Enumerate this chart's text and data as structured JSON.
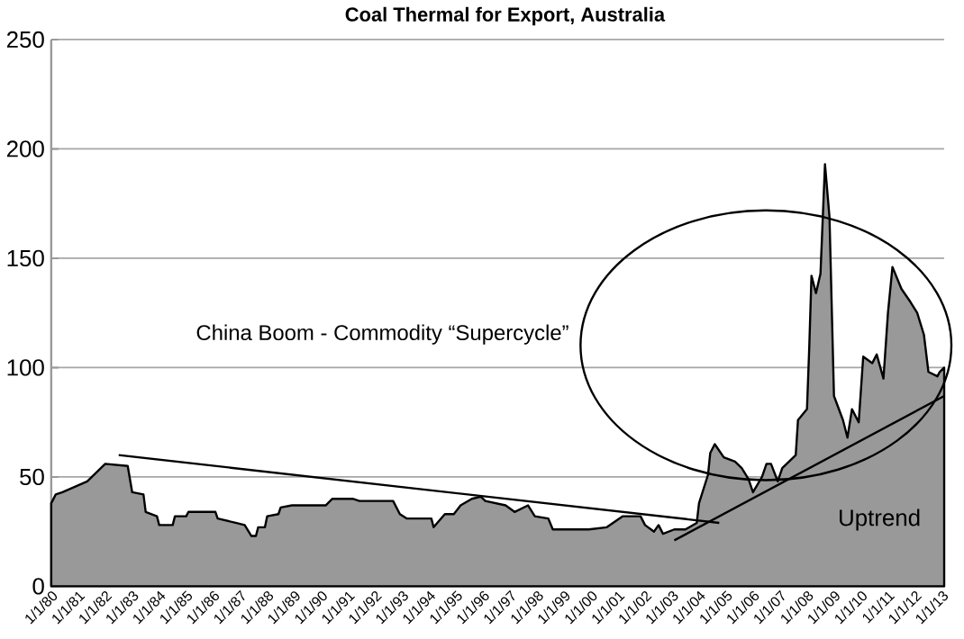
{
  "chart_data": {
    "type": "area",
    "title": "Coal Thermal for Export, Australia",
    "series": [
      {
        "color": "#999999",
        "x": [
          "1980-01",
          "1980-03",
          "1980-06",
          "1981-05",
          "1982-01",
          "1982-11",
          "1983-01",
          "1983-06",
          "1983-07",
          "1983-12",
          "1984-01",
          "1984-07",
          "1984-08",
          "1985-01",
          "1985-02",
          "1986-02",
          "1986-03",
          "1986-11",
          "1987-03",
          "1987-06",
          "1987-08",
          "1987-09",
          "1987-12",
          "1988-01",
          "1988-06",
          "1988-07",
          "1988-12",
          "1990-03",
          "1990-06",
          "1991-03",
          "1991-06",
          "1992-09",
          "1992-12",
          "1993-03",
          "1994-02",
          "1994-03",
          "1994-08",
          "1994-12",
          "1995-03",
          "1995-08",
          "1995-12",
          "1996-02",
          "1996-11",
          "1997-03",
          "1997-09",
          "1997-12",
          "1998-06",
          "1998-08",
          "1999-12",
          "2000-08",
          "2001-03",
          "2001-11",
          "2002-01",
          "2002-05",
          "2002-07",
          "2002-09",
          "2003-02",
          "2003-07",
          "2003-12",
          "2004-01",
          "2004-05",
          "2004-06",
          "2004-08",
          "2004-12",
          "2005-05",
          "2005-08",
          "2005-11",
          "2006-01",
          "2006-05",
          "2006-07",
          "2006-09",
          "2006-12",
          "2007-02",
          "2007-08",
          "2007-09",
          "2008-01",
          "2008-02",
          "2008-03",
          "2008-05",
          "2008-07",
          "2008-09",
          "2008-11",
          "2009-01",
          "2009-05",
          "2009-07",
          "2009-09",
          "2009-12",
          "2010-02",
          "2010-06",
          "2010-08",
          "2010-11",
          "2011-01",
          "2011-03",
          "2011-07",
          "2011-11",
          "2012-02",
          "2012-05",
          "2012-07",
          "2012-11",
          "2012-12",
          "2013-02"
        ],
        "values": [
          38,
          42,
          43,
          48,
          56,
          55,
          43,
          42,
          34,
          32,
          28,
          28,
          32,
          32,
          34,
          34,
          31,
          29,
          28,
          23,
          23,
          27,
          27,
          32,
          33,
          36,
          37,
          37,
          40,
          40,
          39,
          39,
          33,
          31,
          31,
          27,
          33,
          33,
          37,
          40,
          41,
          39,
          37,
          34,
          37,
          32,
          31,
          26,
          26,
          27,
          32,
          32,
          28,
          25,
          28,
          24,
          26,
          26,
          29,
          38,
          51,
          61,
          65,
          59,
          57,
          54,
          49,
          43,
          50,
          56,
          56,
          48,
          54,
          60,
          76,
          81,
          109,
          142,
          134,
          143,
          193,
          169,
          87,
          76,
          68,
          81,
          75,
          105,
          102,
          106,
          95,
          125,
          146,
          136,
          130,
          125,
          115,
          98,
          96,
          98,
          100
        ]
      },
      {
        "type": "line",
        "color": "#000000",
        "x": [
          "1982-07",
          "2004-10"
        ],
        "values": [
          60,
          29
        ]
      },
      {
        "type": "line",
        "color": "#000000",
        "x": [
          "2003-02",
          "2013-02"
        ],
        "values": [
          21,
          87
        ]
      }
    ],
    "annotations": [
      "China Boom - Commodity “Supercycle”",
      "Uptrend"
    ],
    "xlim": [
      "1980-01-01",
      "2013-02-01"
    ],
    "ylim": [
      0,
      250
    ],
    "yticks": [
      0,
      50,
      100,
      150,
      200,
      250
    ],
    "xticks": [
      {
        "value": "1980-01-01",
        "label": "1/1/80"
      },
      {
        "value": "1981-01-01",
        "label": "1/1/81"
      },
      {
        "value": "1982-01-01",
        "label": "1/1/82"
      },
      {
        "value": "1983-01-01",
        "label": "1/1/83"
      },
      {
        "value": "1984-01-01",
        "label": "1/1/84"
      },
      {
        "value": "1985-01-01",
        "label": "1/1/85"
      },
      {
        "value": "1986-01-01",
        "label": "1/1/86"
      },
      {
        "value": "1987-01-01",
        "label": "1/1/87"
      },
      {
        "value": "1988-01-01",
        "label": "1/1/88"
      },
      {
        "value": "1989-01-01",
        "label": "1/1/89"
      },
      {
        "value": "1990-01-01",
        "label": "1/1/90"
      },
      {
        "value": "1991-01-01",
        "label": "1/1/91"
      },
      {
        "value": "1992-01-01",
        "label": "1/1/92"
      },
      {
        "value": "1993-01-01",
        "label": "1/1/93"
      },
      {
        "value": "1994-01-01",
        "label": "1/1/94"
      },
      {
        "value": "1995-01-01",
        "label": "1/1/95"
      },
      {
        "value": "1996-01-01",
        "label": "1/1/96"
      },
      {
        "value": "1997-01-01",
        "label": "1/1/97"
      },
      {
        "value": "1998-01-01",
        "label": "1/1/98"
      },
      {
        "value": "1999-01-01",
        "label": "1/1/99"
      },
      {
        "value": "2000-01-01",
        "label": "1/1/00"
      },
      {
        "value": "2001-01-01",
        "label": "1/1/01"
      },
      {
        "value": "2002-01-01",
        "label": "1/1/02"
      },
      {
        "value": "2003-01-01",
        "label": "1/1/03"
      },
      {
        "value": "2004-01-01",
        "label": "1/1/04"
      },
      {
        "value": "2005-01-01",
        "label": "1/1/05"
      },
      {
        "value": "2006-01-01",
        "label": "1/1/06"
      },
      {
        "value": "2007-01-01",
        "label": "1/1/07"
      },
      {
        "value": "2008-01-01",
        "label": "1/1/08"
      },
      {
        "value": "2009-01-01",
        "label": "1/1/09"
      },
      {
        "value": "2010-01-01",
        "label": "1/1/10"
      },
      {
        "value": "2011-01-01",
        "label": "1/1/11"
      },
      {
        "value": "2012-01-01",
        "label": "1/1/12"
      },
      {
        "value": "2013-01-01",
        "label": "1/1/13"
      }
    ],
    "grid": "y",
    "marker": "none",
    "line_style": "solid"
  }
}
